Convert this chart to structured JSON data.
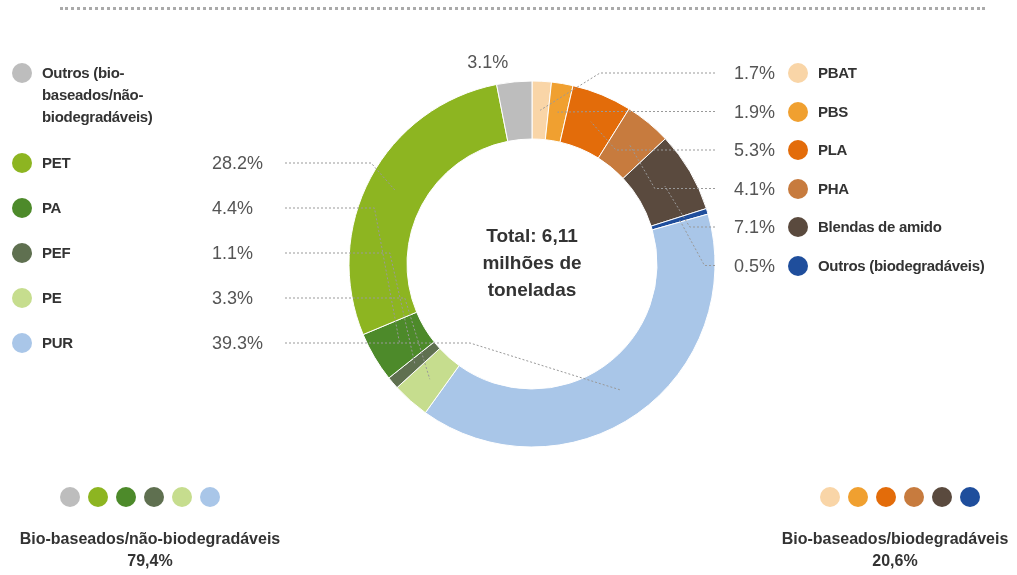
{
  "chart_data": {
    "type": "donut",
    "categories": [
      "PBAT",
      "PBS",
      "PLA",
      "PHA",
      "Blendas de amido",
      "Outros (biodegradáveis)",
      "PUR",
      "PE",
      "PEF",
      "PA",
      "PET",
      "Outros (bio-baseados/não-biodegradáveis)"
    ],
    "values": [
      1.7,
      1.9,
      5.3,
      4.1,
      7.1,
      0.5,
      39.3,
      3.3,
      1.1,
      4.4,
      28.2,
      3.1
    ],
    "value_labels": [
      "1.7%",
      "1.9%",
      "5.3%",
      "4.1%",
      "7.1%",
      "0.5%",
      "39.3%",
      "3.3%",
      "1.1%",
      "4.4%",
      "28.2%",
      "3.1%"
    ],
    "colors": [
      "#f9d5a7",
      "#f0a030",
      "#e36c0a",
      "#c77b3e",
      "#5a4a3e",
      "#1f4e9c",
      "#a9c6e8",
      "#c6dd8e",
      "#5f7050",
      "#4d8a2a",
      "#8db521",
      "#bdbdbd"
    ],
    "legend": "left",
    "annotations": [
      "Total: 6,11 milhões de toneladas",
      "Bio-baseados/não-biodegradáveis 79,4%",
      "Bio-baseados/biodegradáveis 20,6%"
    ]
  }
}
